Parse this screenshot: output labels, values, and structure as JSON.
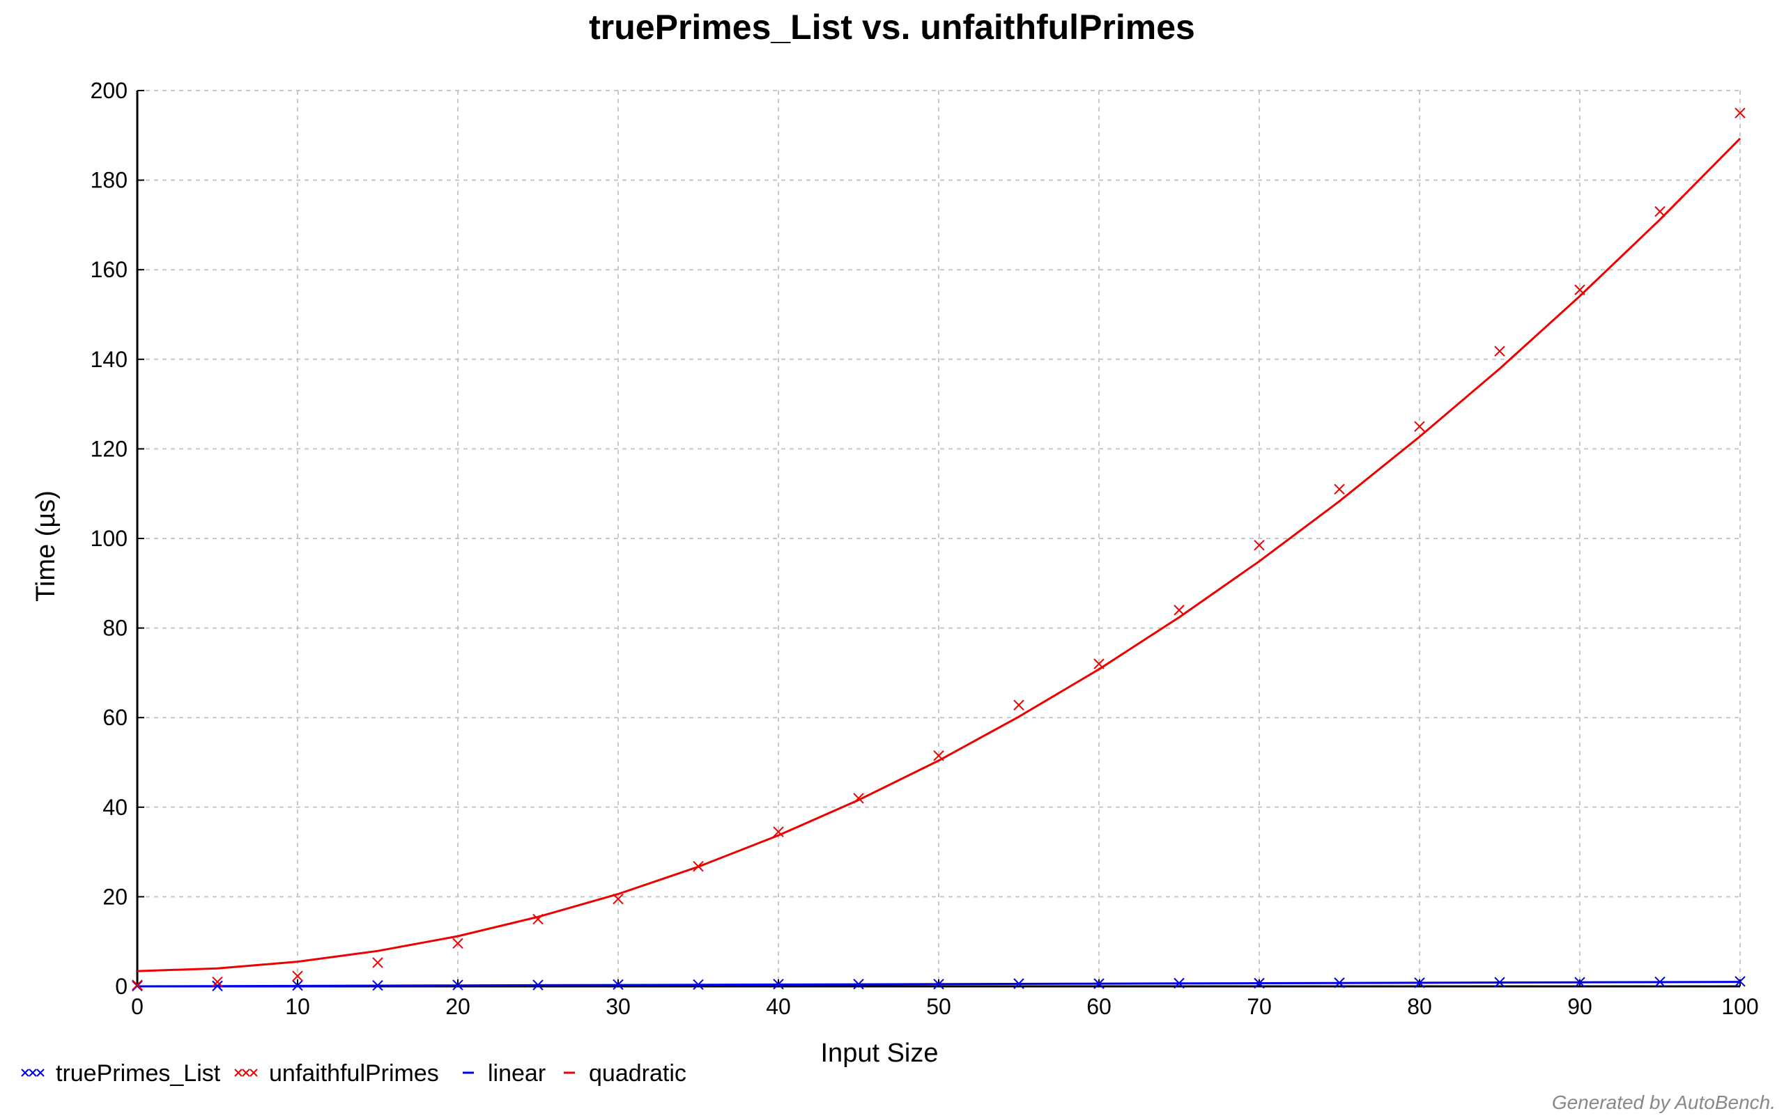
{
  "chart_data": {
    "type": "scatter",
    "title": "truePrimes_List vs. unfaithfulPrimes",
    "xlabel": "Input Size",
    "ylabel": "Time (µs)",
    "xlim": [
      0,
      100
    ],
    "ylim": [
      0,
      200
    ],
    "xticks": [
      0,
      10,
      20,
      30,
      40,
      50,
      60,
      70,
      80,
      90,
      100
    ],
    "yticks": [
      0,
      20,
      40,
      60,
      80,
      100,
      120,
      140,
      160,
      180,
      200
    ],
    "grid": true,
    "legend_position": "bottom-left",
    "series": [
      {
        "name": "truePrimes_List",
        "kind": "scatter",
        "marker": "x",
        "color": "#0000ee",
        "x": [
          0,
          5,
          10,
          15,
          20,
          25,
          30,
          35,
          40,
          45,
          50,
          55,
          60,
          65,
          70,
          75,
          80,
          85,
          90,
          95,
          100
        ],
        "y": [
          0.1,
          0.1,
          0.2,
          0.2,
          0.3,
          0.3,
          0.4,
          0.4,
          0.5,
          0.5,
          0.5,
          0.6,
          0.6,
          0.7,
          0.7,
          0.8,
          0.8,
          0.9,
          0.9,
          1.0,
          1.1
        ]
      },
      {
        "name": "unfaithfulPrimes",
        "kind": "scatter",
        "marker": "x",
        "color": "#ee0000",
        "x": [
          0,
          5,
          10,
          15,
          20,
          25,
          30,
          35,
          40,
          45,
          50,
          55,
          60,
          65,
          70,
          75,
          80,
          85,
          90,
          95,
          100
        ],
        "y": [
          0.3,
          1.0,
          2.3,
          5.3,
          9.6,
          15.0,
          19.5,
          26.8,
          34.5,
          42.0,
          51.5,
          62.8,
          72.0,
          84.0,
          98.5,
          111.0,
          125.0,
          141.8,
          155.5,
          173.0,
          195.0
        ]
      },
      {
        "name": "linear",
        "kind": "fit",
        "color": "#0000ee",
        "x": [
          0,
          10,
          20,
          30,
          40,
          50,
          60,
          70,
          80,
          90,
          100
        ],
        "y": [
          0.0,
          0.1,
          0.2,
          0.3,
          0.4,
          0.5,
          0.6,
          0.7,
          0.8,
          0.9,
          1.0
        ]
      },
      {
        "name": "quadratic",
        "kind": "fit",
        "color": "#ee0000",
        "x": [
          0,
          5,
          10,
          15,
          20,
          25,
          30,
          35,
          40,
          45,
          50,
          55,
          60,
          65,
          70,
          75,
          80,
          85,
          90,
          95,
          100
        ],
        "y": [
          3.4,
          4.0,
          5.5,
          7.9,
          11.2,
          15.5,
          20.6,
          26.7,
          33.7,
          41.6,
          50.4,
          60.2,
          70.8,
          82.4,
          94.9,
          108.3,
          122.7,
          137.9,
          154.1,
          171.2,
          189.3
        ]
      }
    ]
  },
  "footer": {
    "credit": "Generated by AutoBench."
  }
}
